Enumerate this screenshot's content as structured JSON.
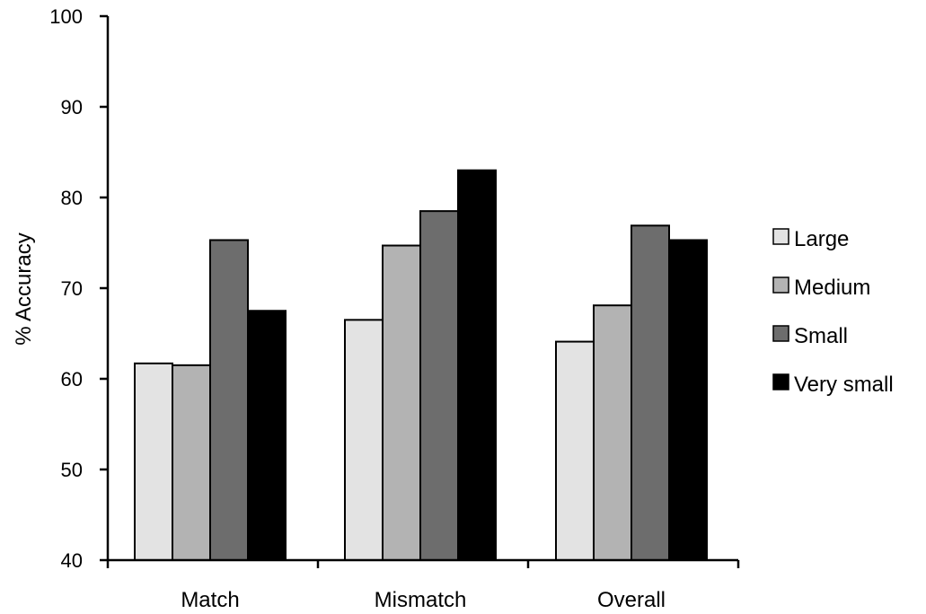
{
  "chart_data": {
    "type": "bar",
    "title": "",
    "xlabel": "",
    "ylabel": "% Accuracy",
    "ylim": [
      40,
      100
    ],
    "yticks": [
      40,
      50,
      60,
      70,
      80,
      90,
      100
    ],
    "grid": false,
    "legend_position": "right",
    "categories": [
      "Match",
      "Mismatch",
      "Overall"
    ],
    "series": [
      {
        "name": "Large",
        "color": "#e3e3e3",
        "values": [
          61.7,
          66.5,
          64.1
        ]
      },
      {
        "name": "Medium",
        "color": "#b3b3b3",
        "values": [
          61.5,
          74.7,
          68.1
        ]
      },
      {
        "name": "Small",
        "color": "#6d6d6d",
        "values": [
          75.3,
          78.5,
          76.9
        ]
      },
      {
        "name": "Very small",
        "color": "#000000",
        "values": [
          67.5,
          83.0,
          75.3
        ]
      }
    ]
  }
}
